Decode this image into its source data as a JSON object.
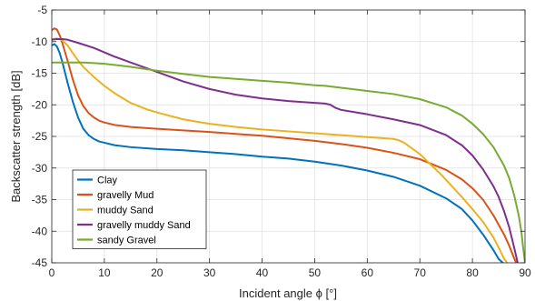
{
  "chart_data": {
    "type": "line",
    "xlabel": "Incident angle ϕ [°]",
    "ylabel": "Backscatter strength [dB]",
    "xlim": [
      0,
      90
    ],
    "ylim": [
      -45,
      -5
    ],
    "xticks": [
      0,
      10,
      20,
      30,
      40,
      50,
      60,
      70,
      80,
      90
    ],
    "yticks": [
      -45,
      -40,
      -35,
      -30,
      -25,
      -20,
      -15,
      -10,
      -5
    ],
    "grid": true,
    "legend_position": "bottom-left",
    "series": [
      {
        "name": "Clay",
        "color": "#0072BD",
        "x": [
          0,
          0.5,
          1,
          1.5,
          2,
          3,
          4,
          5,
          6,
          7,
          8,
          9,
          10,
          12,
          15,
          20,
          25,
          30,
          35,
          40,
          45,
          50,
          55,
          60,
          65,
          70,
          75,
          78,
          80,
          82,
          84,
          85,
          85.8
        ],
        "y": [
          -10.6,
          -10.4,
          -10.8,
          -11.8,
          -13.2,
          -16.5,
          -19.5,
          -22,
          -23.8,
          -24.8,
          -25.4,
          -25.8,
          -26.0,
          -26.4,
          -26.7,
          -27.0,
          -27.2,
          -27.5,
          -27.8,
          -28.2,
          -28.5,
          -29.0,
          -29.6,
          -30.4,
          -31.4,
          -32.8,
          -34.8,
          -36.5,
          -38.3,
          -40.5,
          -43.0,
          -44.4,
          -45
        ]
      },
      {
        "name": "gravelly Mud",
        "color": "#D95319",
        "x": [
          0,
          0.5,
          1,
          1.5,
          2,
          3,
          4,
          5,
          6,
          7,
          8,
          9,
          10,
          12,
          15,
          20,
          30,
          40,
          50,
          55,
          60,
          65,
          70,
          75,
          78,
          80,
          82,
          84,
          86,
          87,
          87.8,
          88.3
        ],
        "y": [
          -8.2,
          -7.9,
          -8.1,
          -9.0,
          -10.2,
          -13.0,
          -16.0,
          -18.5,
          -20.2,
          -21.3,
          -22.0,
          -22.5,
          -22.8,
          -23.2,
          -23.5,
          -23.8,
          -24.3,
          -24.9,
          -25.7,
          -26.2,
          -26.8,
          -27.6,
          -28.6,
          -30.3,
          -31.8,
          -33.2,
          -35.0,
          -37.5,
          -40.5,
          -42.3,
          -44.0,
          -45
        ]
      },
      {
        "name": "muddy Sand",
        "color": "#EDB120",
        "x": [
          0,
          1,
          2,
          3,
          4,
          5,
          6,
          8,
          10,
          12,
          15,
          18,
          20,
          25,
          30,
          35,
          40,
          45,
          50,
          55,
          60,
          65,
          66,
          67,
          68,
          70,
          72,
          74,
          76,
          78,
          80,
          82,
          84,
          85,
          86,
          86.6
        ],
        "y": [
          -9.6,
          -9.5,
          -9.8,
          -10.6,
          -11.8,
          -13.0,
          -14.0,
          -15.6,
          -17.0,
          -18.2,
          -19.7,
          -20.7,
          -21.2,
          -22.3,
          -23.0,
          -23.5,
          -23.9,
          -24.2,
          -24.5,
          -24.8,
          -25.1,
          -25.4,
          -25.6,
          -26.0,
          -26.6,
          -27.8,
          -29.4,
          -31.0,
          -32.8,
          -34.6,
          -36.5,
          -38.5,
          -41.0,
          -42.6,
          -44.3,
          -45
        ]
      },
      {
        "name": "gravelly muddy Sand",
        "color": "#7E2F8E",
        "x": [
          0,
          1,
          2,
          3,
          5,
          8,
          10,
          12,
          15,
          20,
          25,
          30,
          35,
          40,
          45,
          50,
          52,
          53,
          54,
          55,
          60,
          65,
          70,
          75,
          78,
          80,
          82,
          84,
          85,
          86,
          87,
          88,
          88.6
        ],
        "y": [
          -9.7,
          -9.6,
          -9.6,
          -9.7,
          -10.2,
          -11.0,
          -11.7,
          -12.4,
          -13.3,
          -14.8,
          -16.3,
          -17.5,
          -18.4,
          -19.0,
          -19.4,
          -19.7,
          -19.8,
          -20.0,
          -20.5,
          -20.8,
          -21.5,
          -22.3,
          -23.2,
          -24.8,
          -26.4,
          -28.0,
          -30.2,
          -32.9,
          -34.6,
          -36.8,
          -39.4,
          -42.8,
          -45
        ]
      },
      {
        "name": "sandy Gravel",
        "color": "#77AC30",
        "x": [
          0,
          2,
          4,
          6,
          8,
          10,
          15,
          20,
          25,
          30,
          35,
          40,
          45,
          50,
          52,
          55,
          60,
          65,
          70,
          75,
          78,
          80,
          82,
          84,
          86,
          87,
          88,
          88.8,
          89.3,
          89.7,
          90
        ],
        "y": [
          -13.3,
          -13.3,
          -13.3,
          -13.3,
          -13.4,
          -13.5,
          -14.0,
          -14.6,
          -15.1,
          -15.6,
          -15.9,
          -16.2,
          -16.5,
          -16.9,
          -17.0,
          -17.3,
          -17.8,
          -18.3,
          -19.1,
          -20.4,
          -21.7,
          -23.0,
          -24.6,
          -26.7,
          -29.6,
          -31.6,
          -34.5,
          -37.5,
          -40.0,
          -43.0,
          -45
        ]
      }
    ]
  }
}
